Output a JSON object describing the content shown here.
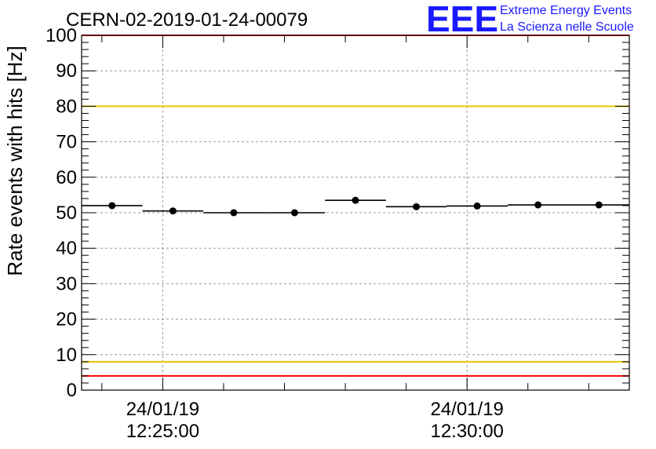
{
  "header": {
    "run_id": "CERN-02-2019-01-24-00079",
    "logo_mark": "EEE",
    "logo_line1": "Extreme Energy Events",
    "logo_line2": "La Scienza nelle Scuole",
    "logo_color": "#1a1aff"
  },
  "chart_data": {
    "type": "scatter",
    "ylabel": "Rate events with hits [Hz]",
    "xlabel": "",
    "ylim": [
      0,
      100
    ],
    "y_ticks": [
      0,
      10,
      20,
      30,
      40,
      50,
      60,
      70,
      80,
      90,
      100
    ],
    "x_minutes_range": [
      "12:23:40",
      "12:32:40"
    ],
    "x_labeled_ticks": [
      {
        "time": "12:25:00",
        "date_label": "24/01/19",
        "time_label": "12:25:00"
      },
      {
        "time": "12:30:00",
        "date_label": "24/01/19",
        "time_label": "12:30:00"
      }
    ],
    "grid": true,
    "series": [
      {
        "points": [
          {
            "x_start": "12:23:40",
            "x_end": "12:24:40",
            "y": 52.0
          },
          {
            "x_start": "12:24:40",
            "x_end": "12:25:40",
            "y": 50.5
          },
          {
            "x_start": "12:25:40",
            "x_end": "12:26:40",
            "y": 50.0
          },
          {
            "x_start": "12:26:40",
            "x_end": "12:27:40",
            "y": 50.0
          },
          {
            "x_start": "12:27:40",
            "x_end": "12:28:40",
            "y": 53.5
          },
          {
            "x_start": "12:28:40",
            "x_end": "12:29:40",
            "y": 51.7
          },
          {
            "x_start": "12:29:40",
            "x_end": "12:30:40",
            "y": 51.9
          },
          {
            "x_start": "12:30:40",
            "x_end": "12:31:40",
            "y": 52.2
          },
          {
            "x_start": "12:31:40",
            "x_end": "12:32:40",
            "y": 52.2
          }
        ]
      }
    ],
    "reference_lines": [
      {
        "y": 100,
        "color": "#ff0000"
      },
      {
        "y": 80,
        "color": "#e6c300"
      },
      {
        "y": 8,
        "color": "#e6c300"
      },
      {
        "y": 4,
        "color": "#ff0000"
      }
    ]
  }
}
